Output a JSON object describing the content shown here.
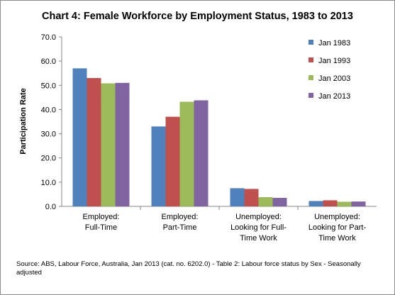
{
  "chart_data": {
    "type": "bar",
    "title": "Chart 4: Female Workforce by Employment Status, 1983  to 2013",
    "ylabel": "Participation Rate",
    "xlabel": "",
    "ylim": [
      0,
      70
    ],
    "yticks": [
      "0.0",
      "10.0",
      "20.0",
      "30.0",
      "40.0",
      "50.0",
      "60.0",
      "70.0"
    ],
    "grid": false,
    "legend_position": "top-right",
    "categories": [
      [
        "Employed:",
        "Full-Time"
      ],
      [
        "Employed:",
        "Part-Time"
      ],
      [
        "Unemployed:",
        "Looking for Full-",
        "Time Work"
      ],
      [
        "Unemployed:",
        "Looking for Part-",
        "Time Work"
      ]
    ],
    "series": [
      {
        "name": "Jan 1983",
        "color": "#4F81BD",
        "values": [
          57.0,
          33.0,
          7.5,
          2.2
        ]
      },
      {
        "name": "Jan 1993",
        "color": "#C0504D",
        "values": [
          53.0,
          37.0,
          7.2,
          2.5
        ]
      },
      {
        "name": "Jan 2003",
        "color": "#9BBB59",
        "values": [
          50.8,
          43.2,
          3.8,
          1.9
        ]
      },
      {
        "name": "Jan 2013",
        "color": "#8064A2",
        "values": [
          51.0,
          43.8,
          3.5,
          2.0
        ]
      }
    ],
    "source": "Source: ABS, Labour Force, Australia, Jan 2013 (cat. no. 6202.0) - Table 2: Labour force status by Sex - Seasonally adjusted"
  }
}
